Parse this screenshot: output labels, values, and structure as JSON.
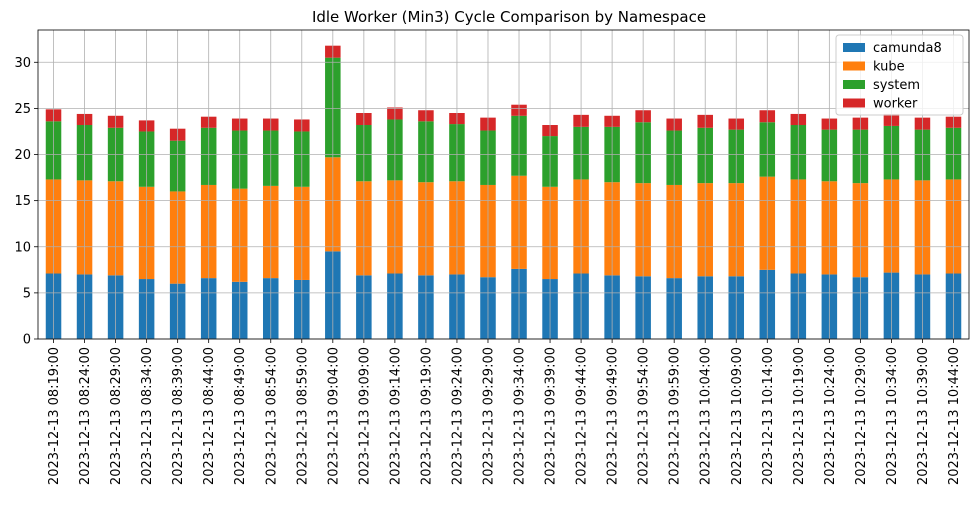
{
  "chart_data": {
    "type": "bar",
    "stacked": true,
    "title": "Idle Worker (Min3) Cycle Comparison by Namespace",
    "xlabel": "",
    "ylabel": "",
    "ylim": [
      0,
      33.5
    ],
    "yticks": [
      0,
      5,
      10,
      15,
      20,
      25,
      30
    ],
    "grid": true,
    "legend_position": "top-right",
    "categories": [
      "2023-12-13 08:19:00",
      "2023-12-13 08:24:00",
      "2023-12-13 08:29:00",
      "2023-12-13 08:34:00",
      "2023-12-13 08:39:00",
      "2023-12-13 08:44:00",
      "2023-12-13 08:49:00",
      "2023-12-13 08:54:00",
      "2023-12-13 08:59:00",
      "2023-12-13 09:04:00",
      "2023-12-13 09:09:00",
      "2023-12-13 09:14:00",
      "2023-12-13 09:19:00",
      "2023-12-13 09:24:00",
      "2023-12-13 09:29:00",
      "2023-12-13 09:34:00",
      "2023-12-13 09:39:00",
      "2023-12-13 09:44:00",
      "2023-12-13 09:49:00",
      "2023-12-13 09:54:00",
      "2023-12-13 09:59:00",
      "2023-12-13 10:04:00",
      "2023-12-13 10:09:00",
      "2023-12-13 10:14:00",
      "2023-12-13 10:19:00",
      "2023-12-13 10:24:00",
      "2023-12-13 10:29:00",
      "2023-12-13 10:34:00",
      "2023-12-13 10:39:00",
      "2023-12-13 10:44:00"
    ],
    "series": [
      {
        "name": "camunda8",
        "color": "#1f77b4",
        "values": [
          7.1,
          7.0,
          6.9,
          6.5,
          6.0,
          6.6,
          6.2,
          6.6,
          6.4,
          9.5,
          6.9,
          7.1,
          6.9,
          7.0,
          6.7,
          7.6,
          6.5,
          7.1,
          6.9,
          6.8,
          6.6,
          6.8,
          6.8,
          7.5,
          7.1,
          7.0,
          6.7,
          7.2,
          7.0,
          7.1
        ]
      },
      {
        "name": "kube",
        "color": "#ff7f0e",
        "values": [
          10.2,
          10.2,
          10.2,
          10.0,
          10.0,
          10.1,
          10.1,
          10.0,
          10.1,
          10.2,
          10.2,
          10.1,
          10.1,
          10.1,
          10.0,
          10.1,
          10.0,
          10.2,
          10.1,
          10.1,
          10.1,
          10.1,
          10.1,
          10.1,
          10.2,
          10.1,
          10.2,
          10.1,
          10.2,
          10.2
        ]
      },
      {
        "name": "system",
        "color": "#2ca02c",
        "values": [
          6.3,
          6.0,
          5.8,
          6.0,
          5.5,
          6.2,
          6.3,
          6.0,
          6.0,
          10.8,
          6.1,
          6.6,
          6.6,
          6.2,
          5.9,
          6.5,
          5.5,
          5.7,
          6.0,
          6.6,
          5.9,
          6.0,
          5.8,
          5.9,
          5.9,
          5.6,
          5.8,
          5.8,
          5.5,
          5.6
        ]
      },
      {
        "name": "worker",
        "color": "#d62728",
        "values": [
          1.3,
          1.2,
          1.3,
          1.2,
          1.3,
          1.2,
          1.3,
          1.3,
          1.3,
          1.3,
          1.3,
          1.3,
          1.2,
          1.2,
          1.4,
          1.2,
          1.2,
          1.3,
          1.2,
          1.3,
          1.3,
          1.4,
          1.2,
          1.3,
          1.2,
          1.2,
          1.3,
          1.3,
          1.3,
          1.2
        ]
      }
    ]
  }
}
